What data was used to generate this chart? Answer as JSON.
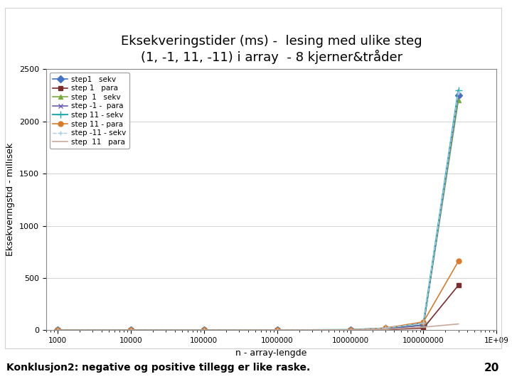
{
  "title_line1": "Eksekveringstider (ms) -  lesing med ulike steg",
  "title_line2": "(1, -1, 11, -11) i array  - 8 kjerner&tråder",
  "xlabel": "n - array-lengde",
  "ylabel": "Eksekveringstid - millisek",
  "x": [
    1000,
    10000,
    100000,
    1000000,
    10000000,
    30000000,
    100000000,
    300000000
  ],
  "series": [
    {
      "label": "step1   sekv",
      "color": "#4472C4",
      "marker": "D",
      "linestyle": "-",
      "linewidth": 1.2,
      "markersize": 5,
      "y": [
        0,
        0,
        0,
        1,
        3,
        10,
        50,
        2250
      ]
    },
    {
      "label": "step 1   para",
      "color": "#7B2C2C",
      "marker": "s",
      "linestyle": "-",
      "linewidth": 1.2,
      "markersize": 5,
      "y": [
        0,
        0,
        0,
        1,
        3,
        5,
        20,
        430
      ]
    },
    {
      "label": "step  1   sekv",
      "color": "#7AAB3C",
      "marker": "^",
      "linestyle": "-",
      "linewidth": 1.2,
      "markersize": 5,
      "y": [
        0,
        0,
        0,
        1,
        3,
        10,
        50,
        2200
      ]
    },
    {
      "label": "step -1 -  para",
      "color": "#6B5FB5",
      "marker": "x",
      "linestyle": "-",
      "linewidth": 1.2,
      "markersize": 5,
      "y": [
        0,
        0,
        0,
        1,
        3,
        10,
        50,
        2250
      ]
    },
    {
      "label": "step 11 - sekv",
      "color": "#2AACAC",
      "marker": "+",
      "linestyle": "-",
      "linewidth": 1.5,
      "markersize": 7,
      "y": [
        0,
        0,
        0,
        1,
        5,
        20,
        70,
        2300
      ]
    },
    {
      "label": "step 11 - para",
      "color": "#D97B2A",
      "marker": "o",
      "linestyle": "-",
      "linewidth": 1.2,
      "markersize": 5,
      "y": [
        0,
        0,
        0,
        1,
        3,
        20,
        80,
        660
      ]
    },
    {
      "label": "step -11 - sekv",
      "color": "#AACCE8",
      "marker": "+",
      "linestyle": "--",
      "linewidth": 1.0,
      "markersize": 5,
      "y": [
        0,
        0,
        0,
        1,
        5,
        20,
        70,
        2280
      ]
    },
    {
      "label": "step  11   para",
      "color": "#C8A89A",
      "marker": null,
      "linestyle": "-",
      "linewidth": 1.2,
      "markersize": 0,
      "y": [
        0,
        0,
        0,
        1,
        3,
        8,
        30,
        60
      ]
    }
  ],
  "ylim": [
    0,
    2500
  ],
  "yticks": [
    0,
    500,
    1000,
    1500,
    2000,
    2500
  ],
  "xlim_left": 700,
  "xlim_right": 700000000.0,
  "background_color": "#FFFFFF",
  "plot_bg": "#FFFFFF",
  "border_color": "#D0D0D0",
  "footer_text": "Konklusjon2: negative og positive tillegg er like raske.",
  "footer_number": "20",
  "footer_bg": "#BEBEBE",
  "title_fontsize": 13,
  "axis_label_fontsize": 9,
  "legend_fontsize": 7.5,
  "xtick_vals": [
    1000,
    10000,
    100000,
    1000000,
    10000000,
    100000000,
    1000000000
  ],
  "xtick_labels": [
    "1000",
    "10000",
    "100000",
    "1000000",
    "10000000",
    "100000000",
    "1E+09"
  ]
}
